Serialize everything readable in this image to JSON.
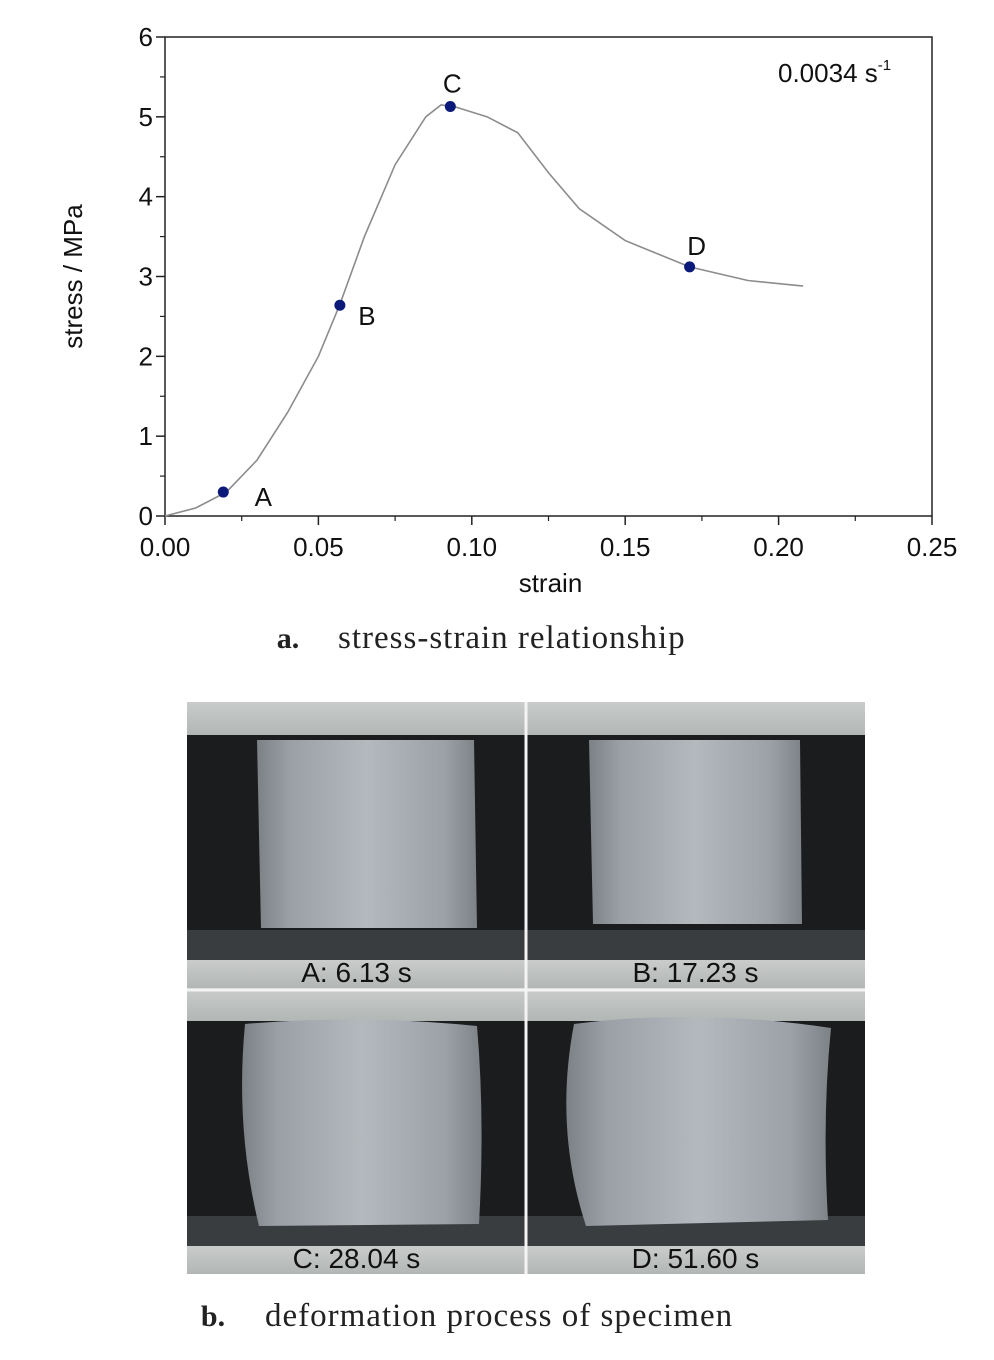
{
  "chart_data": {
    "type": "line",
    "x": [
      0,
      0.01,
      0.02,
      0.03,
      0.04,
      0.05,
      0.057,
      0.065,
      0.075,
      0.085,
      0.09,
      0.095,
      0.105,
      0.115,
      0.125,
      0.135,
      0.15,
      0.171,
      0.19,
      0.208
    ],
    "series": [
      {
        "color": "#8c8c8c",
        "values": [
          0,
          0.1,
          0.3,
          0.7,
          1.3,
          2.0,
          2.65,
          3.5,
          4.4,
          5.0,
          5.15,
          5.12,
          5.0,
          4.8,
          4.3,
          3.85,
          3.45,
          3.12,
          2.95,
          2.88
        ]
      }
    ],
    "points": {
      "color": "#0b1a7a",
      "x": [
        0.019,
        0.057,
        0.093,
        0.171
      ],
      "values": [
        0.3,
        2.64,
        5.13,
        3.12
      ],
      "labels": [
        "A",
        "B",
        "C",
        "D"
      ]
    },
    "xlabel": "strain",
    "ylabel": "stress / MPa",
    "annotation": {
      "text": "0.0034 s",
      "sup": "-1"
    },
    "xlim": [
      0,
      0.25
    ],
    "xticks": [
      {
        "value": 0,
        "label": "0.00"
      },
      {
        "value": 0.05,
        "label": "0.05"
      },
      {
        "value": 0.1,
        "label": "0.10"
      },
      {
        "value": 0.15,
        "label": "0.15"
      },
      {
        "value": 0.2,
        "label": "0.20"
      },
      {
        "value": 0.25,
        "label": "0.25"
      }
    ],
    "xminorticks": [
      0.025,
      0.075,
      0.125,
      0.175,
      0.225
    ],
    "ylim": [
      0,
      6
    ],
    "yticks": [
      0,
      1,
      2,
      3,
      4,
      5,
      6
    ],
    "yminorticks": [
      0.5,
      1.5,
      2.5,
      3.5,
      4.5,
      5.5
    ]
  },
  "caption_a": {
    "label": "a.",
    "text": "stress-strain relationship"
  },
  "photos": {
    "panels": [
      "A: 6.13 s",
      "B: 17.23 s",
      "C: 28.04 s",
      "D: 51.60 s"
    ]
  },
  "caption_b": {
    "label": "b.",
    "text": "deformation process of specimen"
  }
}
